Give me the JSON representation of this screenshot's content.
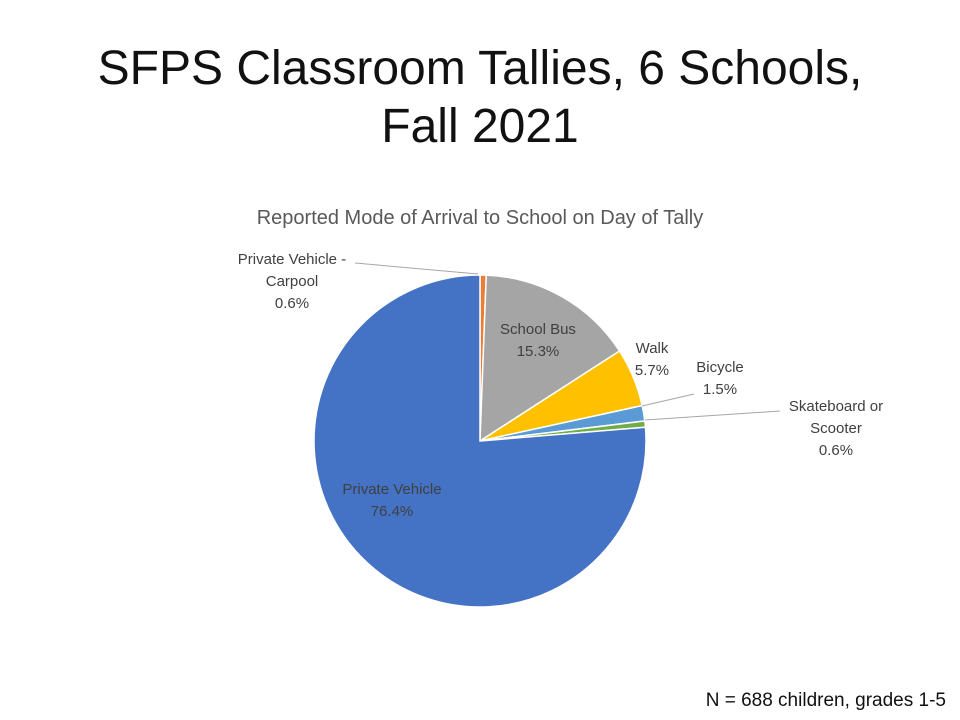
{
  "slide": {
    "title_line1": "SFPS Classroom Tallies, 6 Schools,",
    "title_line2": "Fall 2021",
    "footnote": "N  = 688 children, grades 1-5"
  },
  "chart_data": {
    "type": "pie",
    "title": "Reported Mode of Arrival to School on Day of Tally",
    "slices": [
      {
        "name": "Private Vehicle - Carpool",
        "label_lines": [
          "Private Vehicle -",
          "Carpool"
        ],
        "value": 0.6,
        "value_label": "0.6%",
        "color": "#ED7D31"
      },
      {
        "name": "School Bus",
        "label_lines": [
          "School Bus"
        ],
        "value": 15.3,
        "value_label": "15.3%",
        "color": "#A5A5A5"
      },
      {
        "name": "Walk",
        "label_lines": [
          "Walk"
        ],
        "value": 5.7,
        "value_label": "5.7%",
        "color": "#FFC000"
      },
      {
        "name": "Bicycle",
        "label_lines": [
          "Bicycle"
        ],
        "value": 1.5,
        "value_label": "1.5%",
        "color": "#5B9BD5"
      },
      {
        "name": "Skateboard or Scooter",
        "label_lines": [
          "Skateboard or",
          "Scooter"
        ],
        "value": 0.6,
        "value_label": "0.6%",
        "color": "#70AD47"
      },
      {
        "name": "Private Vehicle",
        "label_lines": [
          "Private Vehicle"
        ],
        "value": 76.4,
        "value_label": "76.4%",
        "color": "#4472C4"
      }
    ]
  }
}
